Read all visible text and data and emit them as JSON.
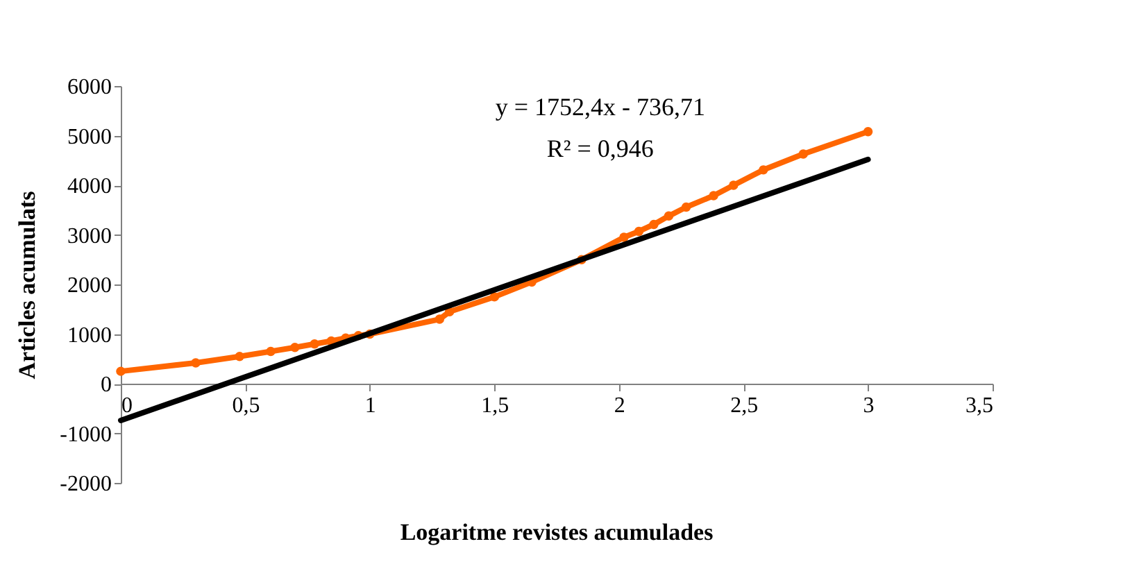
{
  "chart_data": {
    "type": "line",
    "xlabel": "Logaritme revistes acumulades",
    "ylabel": "Articles acumulats",
    "annotations": [
      "y = 1752,4x - 736,71",
      "R² = 0,946"
    ],
    "series": [
      {
        "color": "#ff6600",
        "marker": "circle",
        "x": [
          0,
          0.301,
          0.477,
          0.602,
          0.699,
          0.778,
          0.845,
          0.903,
          0.954,
          1.0,
          1.28,
          1.32,
          1.5,
          1.65,
          1.85,
          2.02,
          2.08,
          2.14,
          2.2,
          2.27,
          2.38,
          2.46,
          2.58,
          2.74,
          3.0
        ],
        "values": [
          250,
          420,
          550,
          650,
          730,
          800,
          860,
          920,
          970,
          1000,
          1300,
          1450,
          1750,
          2050,
          2500,
          2950,
          3070,
          3210,
          3380,
          3560,
          3790,
          4000,
          4310,
          4630,
          5080
        ]
      },
      {
        "color": "#000000",
        "marker": "none",
        "x": [
          0,
          3
        ],
        "values": [
          -740,
          4520
        ]
      }
    ],
    "xlim": [
      0,
      3.5
    ],
    "xticks": [
      0,
      {
        "value": 0.5,
        "label": "0,5"
      },
      1,
      {
        "value": 1.5,
        "label": "1,5"
      },
      2,
      {
        "value": 2.5,
        "label": "2,5"
      },
      3,
      {
        "value": 3.5,
        "label": "3,5"
      }
    ],
    "ylim": [
      -2000,
      6000
    ],
    "yticks": [
      -2000,
      -1000,
      0,
      1000,
      2000,
      3000,
      4000,
      5000,
      6000
    ],
    "grid": false,
    "line_style": "solid"
  }
}
